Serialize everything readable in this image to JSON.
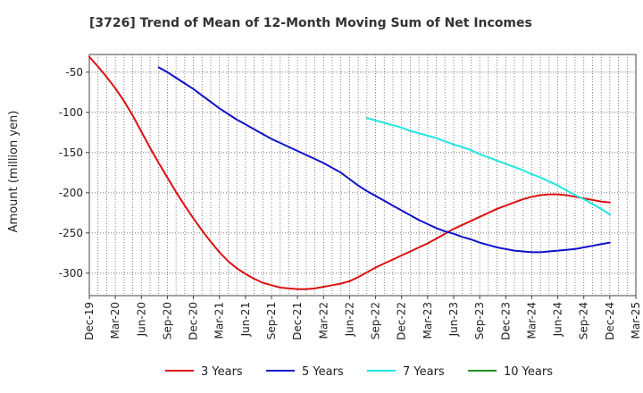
{
  "chart_data": {
    "type": "line",
    "title": "[3726]  Trend of Mean of 12-Month Moving Sum of Net Incomes",
    "xlabel": "",
    "ylabel": "Amount (million yen)",
    "ylim": [
      -328,
      -28
    ],
    "yticks": [
      -50,
      -100,
      -150,
      -200,
      -250,
      -300
    ],
    "ytick_labels": [
      "-50",
      "-100",
      "-150",
      "-200",
      "-250",
      "-300"
    ],
    "xticks": [
      "Dec-19",
      "Mar-20",
      "Jun-20",
      "Sep-20",
      "Dec-20",
      "Mar-21",
      "Jun-21",
      "Sep-21",
      "Dec-21",
      "Mar-22",
      "Jun-22",
      "Sep-22",
      "Dec-22",
      "Mar-23",
      "Jun-23",
      "Sep-23",
      "Dec-23",
      "Mar-24",
      "Jun-24",
      "Sep-24",
      "Dec-24",
      "Mar-25"
    ],
    "grid": true,
    "legend_position": "bottom",
    "series": [
      {
        "name": "3 Years",
        "color": "#dd1111",
        "x": [
          "Dec-19",
          "Jan-20",
          "Feb-20",
          "Mar-20",
          "Apr-20",
          "May-20",
          "Jun-20",
          "Jul-20",
          "Aug-20",
          "Sep-20",
          "Oct-20",
          "Nov-20",
          "Dec-20",
          "Jan-21",
          "Feb-21",
          "Mar-21",
          "Apr-21",
          "May-21",
          "Jun-21",
          "Jul-21",
          "Aug-21",
          "Sep-21",
          "Oct-21",
          "Nov-21",
          "Dec-21",
          "Jan-22",
          "Feb-22",
          "Mar-22",
          "Apr-22",
          "May-22",
          "Jun-22",
          "Jul-22",
          "Aug-22",
          "Sep-22",
          "Oct-22",
          "Nov-22",
          "Dec-22",
          "Jan-23",
          "Feb-23",
          "Mar-23",
          "Apr-23",
          "May-23",
          "Jun-23",
          "Jul-23",
          "Aug-23",
          "Sep-23",
          "Oct-23",
          "Nov-23",
          "Dec-23",
          "Jan-24",
          "Feb-24",
          "Mar-24",
          "Apr-24",
          "May-24",
          "Jun-24",
          "Jul-24",
          "Aug-24",
          "Sep-24",
          "Oct-24",
          "Nov-24",
          "Dec-24"
        ],
        "values": [
          -31,
          -43,
          -56,
          -70,
          -86,
          -104,
          -124,
          -144,
          -163,
          -181,
          -199,
          -216,
          -232,
          -247,
          -261,
          -274,
          -285,
          -294,
          -301,
          -307,
          -312,
          -315,
          -318,
          -319,
          -320,
          -320,
          -319,
          -317,
          -315,
          -313,
          -310,
          -305,
          -299,
          -293,
          -288,
          -283,
          -278,
          -273,
          -268,
          -263,
          -257,
          -251,
          -245,
          -240,
          -235,
          -230,
          -225,
          -220,
          -216,
          -212,
          -208,
          -205,
          -203,
          -202,
          -202,
          -203,
          -205,
          -207,
          -209,
          -211,
          -212
        ]
      },
      {
        "name": "5 Years",
        "color": "#1111cc",
        "x": [
          "Aug-20",
          "Sep-20",
          "Oct-20",
          "Nov-20",
          "Dec-20",
          "Jan-21",
          "Feb-21",
          "Mar-21",
          "Apr-21",
          "May-21",
          "Jun-21",
          "Jul-21",
          "Aug-21",
          "Sep-21",
          "Oct-21",
          "Nov-21",
          "Dec-21",
          "Jan-22",
          "Feb-22",
          "Mar-22",
          "Apr-22",
          "May-22",
          "Jun-22",
          "Jul-22",
          "Aug-22",
          "Sep-22",
          "Oct-22",
          "Nov-22",
          "Dec-22",
          "Jan-23",
          "Feb-23",
          "Mar-23",
          "Apr-23",
          "May-23",
          "Jun-23",
          "Jul-23",
          "Aug-23",
          "Sep-23",
          "Oct-23",
          "Nov-23",
          "Dec-23",
          "Jan-24",
          "Feb-24",
          "Mar-24",
          "Apr-24",
          "May-24",
          "Jun-24",
          "Jul-24",
          "Aug-24",
          "Sep-24",
          "Oct-24",
          "Nov-24",
          "Dec-24"
        ],
        "values": [
          -44,
          -50,
          -57,
          -64,
          -71,
          -79,
          -87,
          -95,
          -102,
          -109,
          -115,
          -121,
          -127,
          -133,
          -138,
          -143,
          -148,
          -153,
          -158,
          -163,
          -169,
          -175,
          -183,
          -191,
          -198,
          -204,
          -210,
          -216,
          -222,
          -228,
          -234,
          -239,
          -244,
          -248,
          -251,
          -255,
          -258,
          -262,
          -265,
          -268,
          -270,
          -272,
          -273,
          -274,
          -274,
          -273,
          -272,
          -271,
          -270,
          -268,
          -266,
          -264,
          -262
        ]
      },
      {
        "name": "7 Years",
        "color": "#22e5e5",
        "x": [
          "Aug-22",
          "Sep-22",
          "Oct-22",
          "Nov-22",
          "Dec-22",
          "Jan-23",
          "Feb-23",
          "Mar-23",
          "Apr-23",
          "May-23",
          "Jun-23",
          "Jul-23",
          "Aug-23",
          "Sep-23",
          "Oct-23",
          "Nov-23",
          "Dec-23",
          "Jan-24",
          "Feb-24",
          "Mar-24",
          "Apr-24",
          "May-24",
          "Jun-24",
          "Jul-24",
          "Aug-24",
          "Sep-24",
          "Oct-24",
          "Nov-24",
          "Dec-24"
        ],
        "values": [
          -107,
          -110,
          -113,
          -116,
          -119,
          -123,
          -126,
          -129,
          -132,
          -136,
          -140,
          -143,
          -147,
          -152,
          -156,
          -160,
          -164,
          -168,
          -172,
          -177,
          -181,
          -186,
          -191,
          -197,
          -203,
          -208,
          -214,
          -220,
          -227
        ]
      },
      {
        "name": "10 Years",
        "color": "#228b22",
        "x": [],
        "values": []
      }
    ]
  }
}
